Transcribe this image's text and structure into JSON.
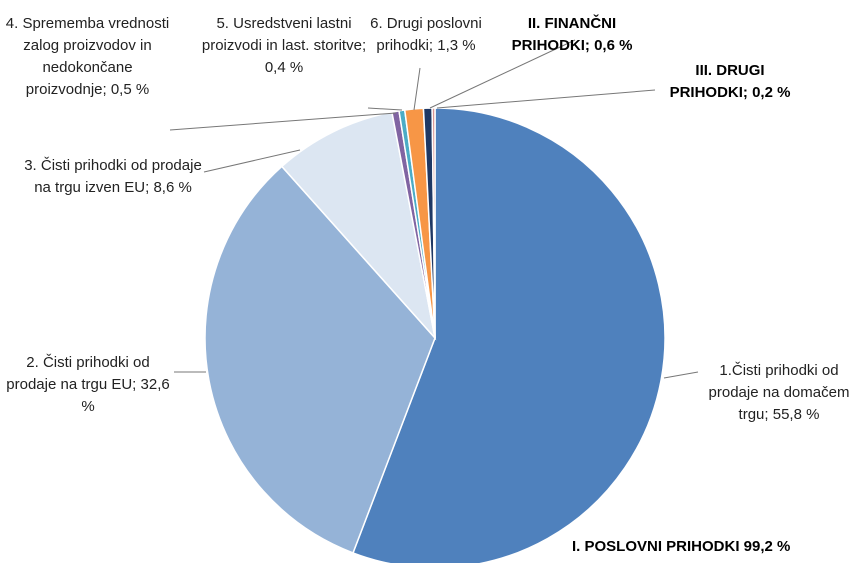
{
  "chart_data": {
    "type": "pie",
    "categories": [
      "1.Čisti prihodki od prodaje na domačem trgu;",
      "2. Čisti prihodki od prodaje na trgu EU;",
      "3. Čisti prihodki od prodaje na trgu izven EU;",
      "4. Sprememba vrednosti zalog proizvodov in nedokončane proizvodnje;",
      "5. Usredstveni lastni proizvodi in last. storitve;",
      "6. Drugi poslovni prihodki;",
      "II. FINANČNI PRIHODKI;",
      "III. DRUGI PRIHODKI;"
    ],
    "values": [
      55.8,
      32.6,
      8.6,
      0.5,
      0.4,
      1.3,
      0.6,
      0.2
    ],
    "value_labels": [
      "55,8 %",
      "32,6 %",
      "8,6 %",
      "0,5 %",
      "0,4 %",
      "1,3 %",
      "0,6 %",
      "0,2 %"
    ],
    "colors": [
      "#4f81bd",
      "#95b3d7",
      "#dce6f2",
      "#8064a2",
      "#4bacc6",
      "#f79646",
      "#1f3864",
      "#d99694"
    ],
    "annotations": [
      "I. POSLOVNI PRIHODKI 99,2 %"
    ]
  }
}
